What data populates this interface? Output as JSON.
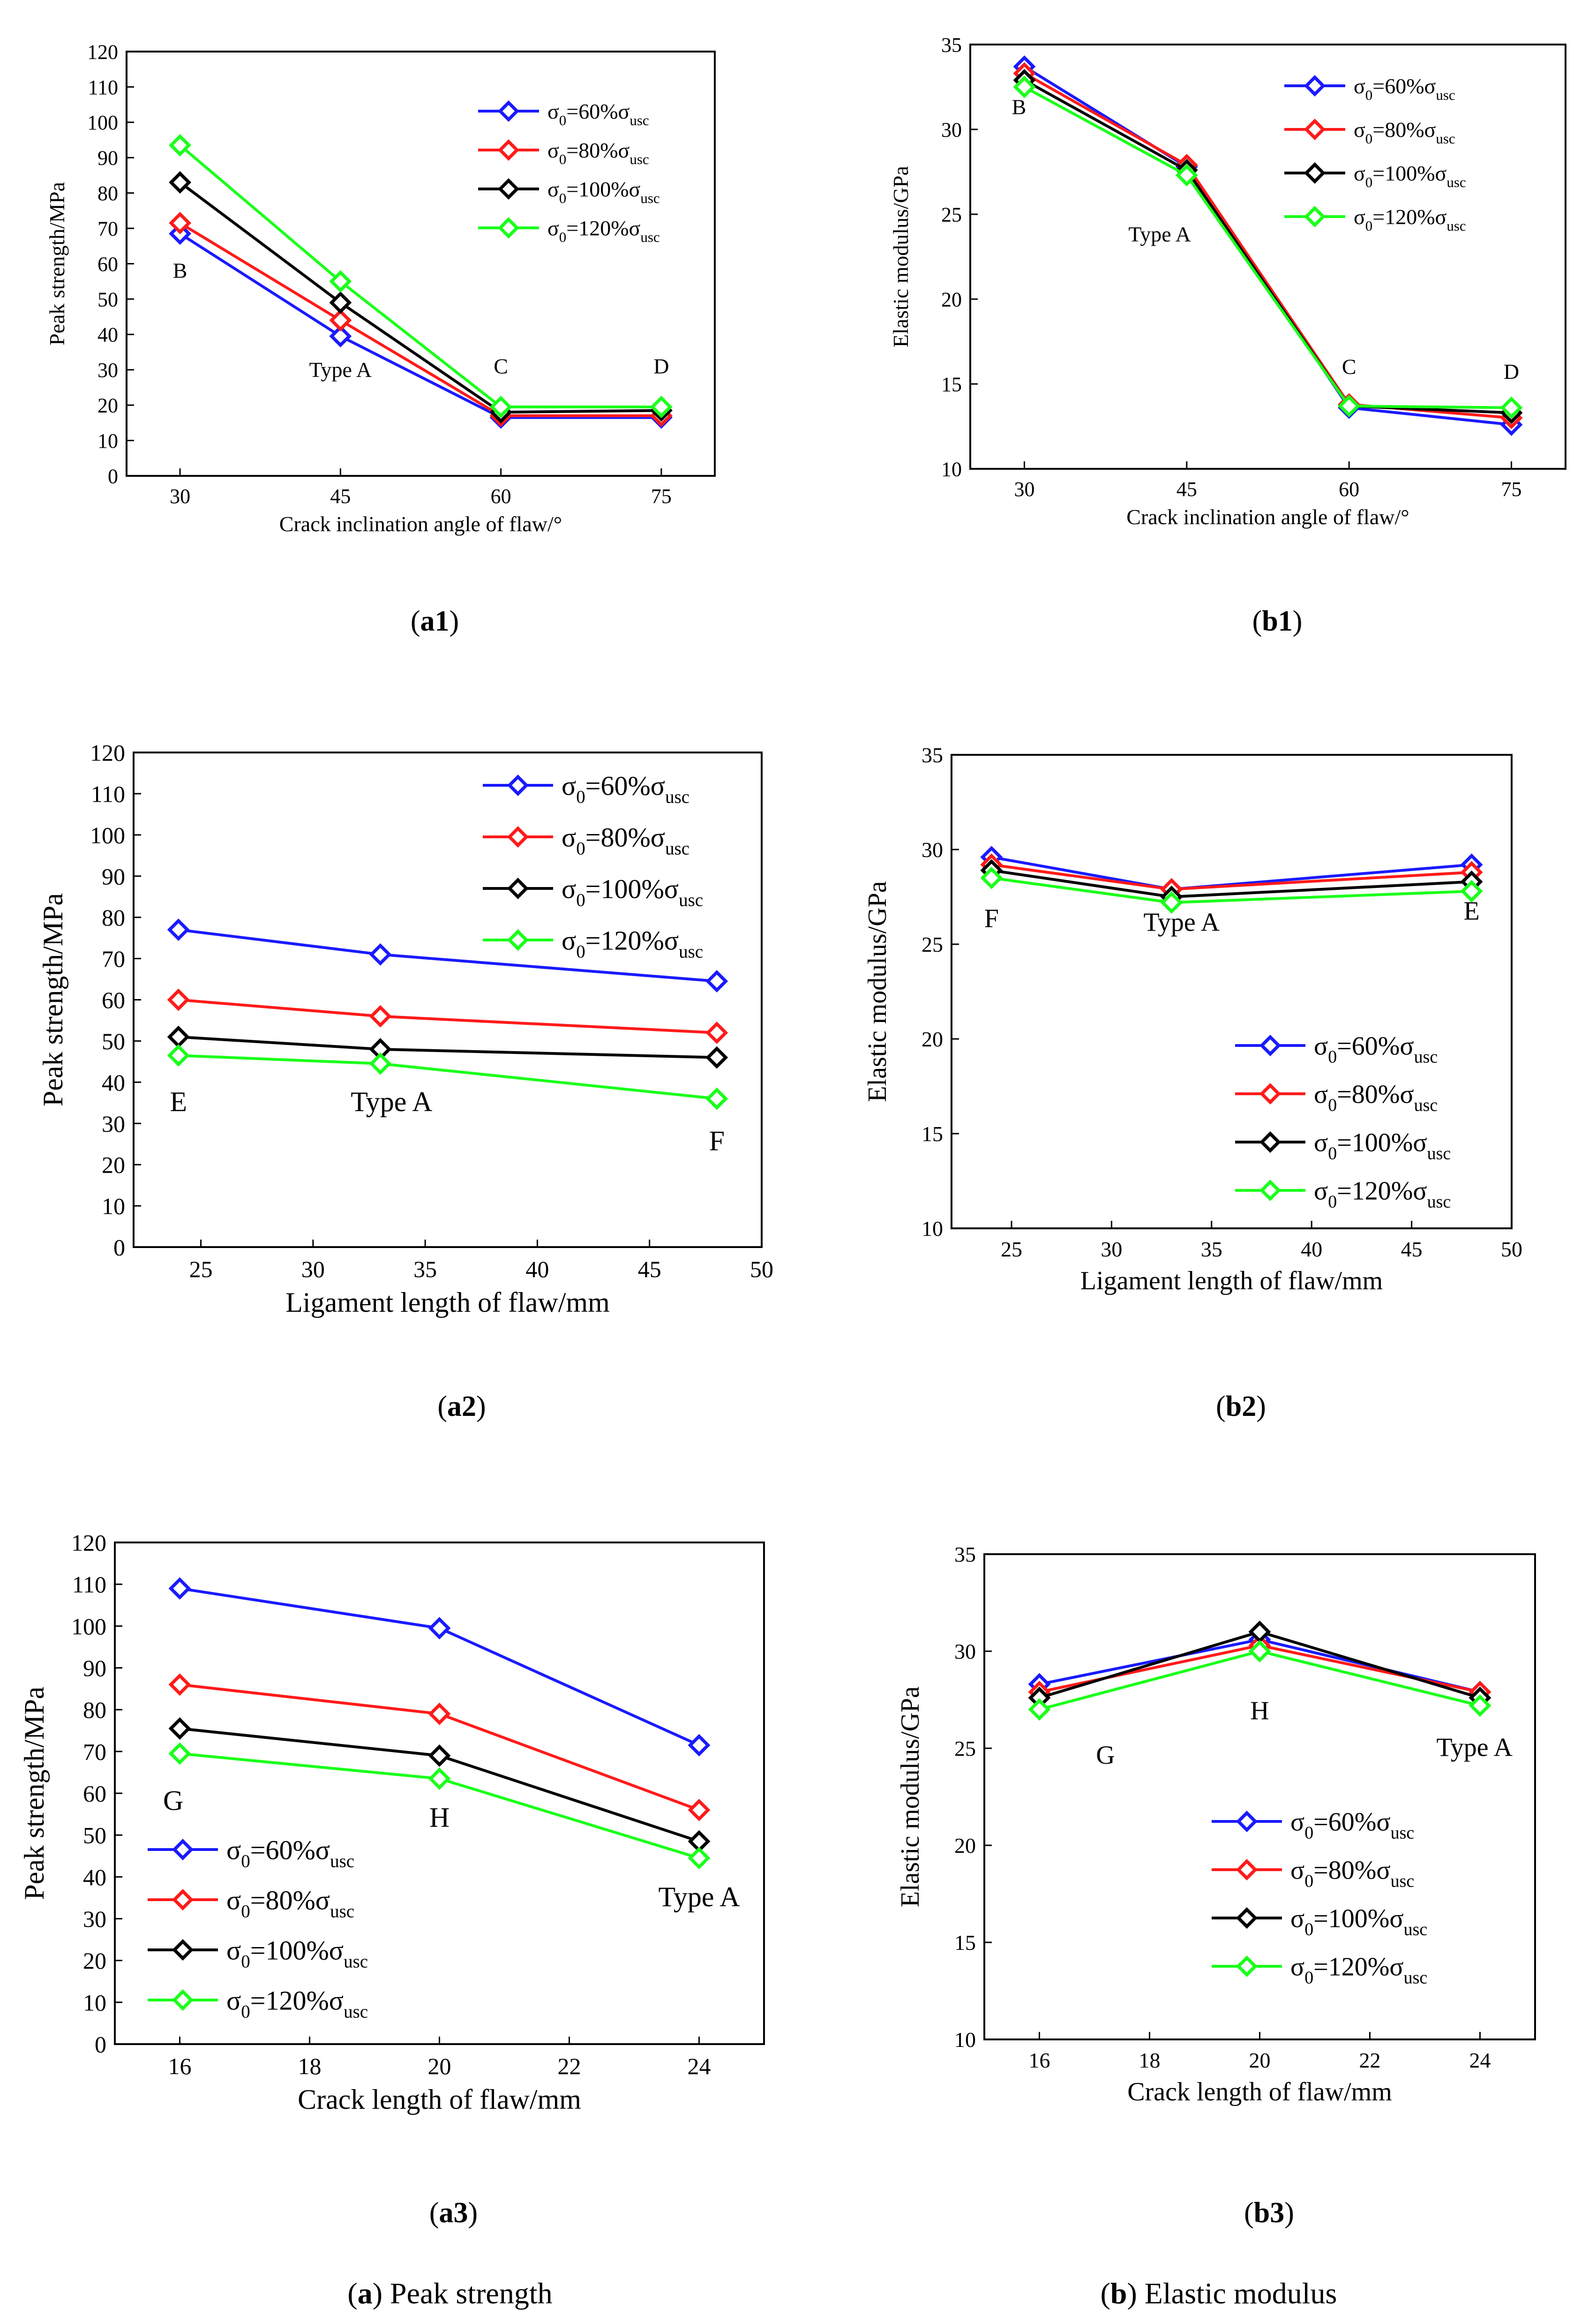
{
  "figure": {
    "caption_a": {
      "letter": "a",
      "text": " Peak strength"
    },
    "caption_b": {
      "letter": "b",
      "text": " Elastic modulus"
    }
  },
  "legend_labels": [
    {
      "sigma": "σ",
      "sub0": "0",
      "eq": "=60%σ",
      "sub": "usc"
    },
    {
      "sigma": "σ",
      "sub0": "0",
      "eq": "=80%σ",
      "sub": "usc"
    },
    {
      "sigma": "σ",
      "sub0": "0",
      "eq": "=100%σ",
      "sub": "usc"
    },
    {
      "sigma": "σ",
      "sub0": "0",
      "eq": "=120%σ",
      "sub": "usc"
    }
  ],
  "series_colors": [
    "#1a1aff",
    "#ff1a1a",
    "#000000",
    "#1aff1a"
  ],
  "chart_data": [
    {
      "id": "a1",
      "label": "a1",
      "type": "line",
      "xlabel": "Crack inclination angle of flaw/°",
      "ylabel": "Peak strength/MPa",
      "x": [
        30,
        45,
        60,
        75
      ],
      "xlim": [
        25,
        80
      ],
      "ylim": [
        0,
        120
      ],
      "xticks": [
        30,
        45,
        60,
        75
      ],
      "yticks": [
        0,
        10,
        20,
        30,
        40,
        50,
        60,
        70,
        80,
        90,
        100,
        110,
        120
      ],
      "series": [
        {
          "name": "σ0=60%σusc",
          "values": [
            68.5,
            39.5,
            16.5,
            16.5
          ]
        },
        {
          "name": "σ0=80%σusc",
          "values": [
            71.5,
            44,
            17,
            17
          ]
        },
        {
          "name": "σ0=100%σusc",
          "values": [
            83,
            49,
            18,
            18.5
          ]
        },
        {
          "name": "σ0=120%σusc",
          "values": [
            93.5,
            55,
            19.5,
            19.5
          ]
        }
      ],
      "annotations": [
        {
          "text": "B",
          "x": 30,
          "y": 56
        },
        {
          "text": "Type A",
          "x": 45,
          "y": 28
        },
        {
          "text": "C",
          "x": 60,
          "y": 29
        },
        {
          "text": "D",
          "x": 75,
          "y": 29
        }
      ],
      "legend": "top-right"
    },
    {
      "id": "b1",
      "label": "b1",
      "type": "line",
      "xlabel": "Crack inclination angle of flaw/°",
      "ylabel": "Elastic modulus/GPa",
      "x": [
        30,
        45,
        60,
        75
      ],
      "xlim": [
        25,
        80
      ],
      "ylim": [
        10,
        35
      ],
      "xticks": [
        30,
        45,
        60,
        75
      ],
      "yticks": [
        10,
        15,
        20,
        25,
        30,
        35
      ],
      "series": [
        {
          "name": "σ0=60%σusc",
          "values": [
            33.7,
            27.8,
            13.6,
            12.6
          ]
        },
        {
          "name": "σ0=80%σusc",
          "values": [
            33.3,
            27.9,
            13.8,
            13.0
          ]
        },
        {
          "name": "σ0=100%σusc",
          "values": [
            32.9,
            27.6,
            13.7,
            13.3
          ]
        },
        {
          "name": "σ0=120%σusc",
          "values": [
            32.5,
            27.3,
            13.7,
            13.6
          ]
        }
      ],
      "annotations": [
        {
          "text": "B",
          "x": 29.5,
          "y": 30.9
        },
        {
          "text": "Type A",
          "x": 42.5,
          "y": 23.4
        },
        {
          "text": "C",
          "x": 60,
          "y": 15.6
        },
        {
          "text": "D",
          "x": 75,
          "y": 15.3
        }
      ],
      "legend": "top-right"
    },
    {
      "id": "a2",
      "label": "a2",
      "type": "line",
      "xlabel": "Ligament length of flaw/mm",
      "ylabel": "Peak strength/MPa",
      "x": [
        24,
        33,
        48
      ],
      "xlim": [
        22,
        50
      ],
      "ylim": [
        0,
        120
      ],
      "xticks": [
        25,
        30,
        35,
        40,
        45,
        50
      ],
      "yticks": [
        0,
        10,
        20,
        30,
        40,
        50,
        60,
        70,
        80,
        90,
        100,
        110,
        120
      ],
      "series": [
        {
          "name": "σ0=60%σusc",
          "values": [
            77,
            71,
            64.5
          ]
        },
        {
          "name": "σ0=80%σusc",
          "values": [
            60,
            56,
            52
          ]
        },
        {
          "name": "σ0=100%σusc",
          "values": [
            51,
            48,
            46
          ]
        },
        {
          "name": "σ0=120%σusc",
          "values": [
            46.5,
            44.5,
            36
          ]
        }
      ],
      "annotations": [
        {
          "text": "E",
          "x": 24,
          "y": 33
        },
        {
          "text": "Type A",
          "x": 33.5,
          "y": 33
        },
        {
          "text": "F",
          "x": 48,
          "y": 23.5
        }
      ],
      "legend": "top-right"
    },
    {
      "id": "b2",
      "label": "b2",
      "type": "line",
      "xlabel": "Ligament length of flaw/mm",
      "ylabel": "Elastic modulus/GPa",
      "x": [
        24,
        33,
        48
      ],
      "xlim": [
        22,
        50
      ],
      "ylim": [
        10,
        35
      ],
      "xticks": [
        25,
        30,
        35,
        40,
        45,
        50
      ],
      "yticks": [
        10,
        15,
        20,
        25,
        30,
        35
      ],
      "series": [
        {
          "name": "σ0=60%σusc",
          "values": [
            29.6,
            27.9,
            29.2
          ]
        },
        {
          "name": "σ0=80%σusc",
          "values": [
            29.2,
            27.9,
            28.8
          ]
        },
        {
          "name": "σ0=100%σusc",
          "values": [
            28.9,
            27.5,
            28.3
          ]
        },
        {
          "name": "σ0=120%σusc",
          "values": [
            28.5,
            27.2,
            27.8
          ]
        }
      ],
      "annotations": [
        {
          "text": "F",
          "x": 24,
          "y": 25.9
        },
        {
          "text": "Type A",
          "x": 33.5,
          "y": 25.7
        },
        {
          "text": "E",
          "x": 48,
          "y": 26.3
        }
      ],
      "legend": "bottom-right"
    },
    {
      "id": "a3",
      "label": "a3",
      "type": "line",
      "xlabel": "Crack length of flaw/mm",
      "ylabel": "Peak strength/MPa",
      "x": [
        16,
        20,
        24
      ],
      "xlim": [
        15,
        25
      ],
      "ylim": [
        0,
        120
      ],
      "xticks": [
        16,
        18,
        20,
        22,
        24
      ],
      "yticks": [
        0,
        10,
        20,
        30,
        40,
        50,
        60,
        70,
        80,
        90,
        100,
        110,
        120
      ],
      "series": [
        {
          "name": "σ0=60%σusc",
          "values": [
            109,
            99.5,
            71.5
          ]
        },
        {
          "name": "σ0=80%σusc",
          "values": [
            86,
            79,
            56
          ]
        },
        {
          "name": "σ0=100%σusc",
          "values": [
            75.5,
            69,
            48.5
          ]
        },
        {
          "name": "σ0=120%σusc",
          "values": [
            69.5,
            63.5,
            44.5
          ]
        }
      ],
      "annotations": [
        {
          "text": "G",
          "x": 15.9,
          "y": 56
        },
        {
          "text": "H",
          "x": 20,
          "y": 52
        },
        {
          "text": "Type A",
          "x": 24,
          "y": 33
        }
      ],
      "legend": "bottom-left"
    },
    {
      "id": "b3",
      "label": "b3",
      "type": "line",
      "xlabel": "Crack length of flaw/mm",
      "ylabel": "Elastic modulus/GPa",
      "x": [
        16,
        20,
        24
      ],
      "xlim": [
        15,
        25
      ],
      "ylim": [
        10,
        35
      ],
      "xticks": [
        16,
        18,
        20,
        22,
        24
      ],
      "yticks": [
        10,
        15,
        20,
        25,
        30,
        35
      ],
      "series": [
        {
          "name": "σ0=60%σusc",
          "values": [
            28.3,
            30.6,
            27.9
          ]
        },
        {
          "name": "σ0=80%σusc",
          "values": [
            27.9,
            30.3,
            27.9
          ]
        },
        {
          "name": "σ0=100%σusc",
          "values": [
            27.6,
            31.0,
            27.6
          ]
        },
        {
          "name": "σ0=120%σusc",
          "values": [
            27.0,
            30.0,
            27.2
          ]
        }
      ],
      "annotations": [
        {
          "text": "G",
          "x": 17.2,
          "y": 24.2
        },
        {
          "text": "H",
          "x": 20,
          "y": 26.5
        },
        {
          "text": "Type A",
          "x": 23.9,
          "y": 24.6
        }
      ],
      "legend": "bottom-right"
    }
  ]
}
